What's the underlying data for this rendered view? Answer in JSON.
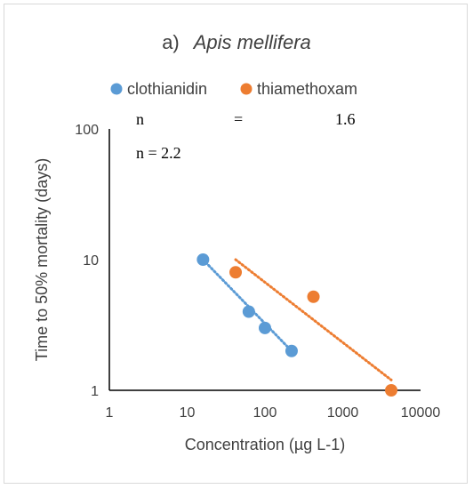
{
  "chart_data": {
    "type": "scatter",
    "title": {
      "prefix": "a)",
      "species": "Apis mellifera"
    },
    "xlabel": "Concentration (µg L-1)",
    "ylabel": "Time to 50% mortality (days)",
    "xscale": "log",
    "yscale": "log",
    "xlim": [
      1,
      10000
    ],
    "ylim": [
      1,
      100
    ],
    "xticks": [
      "1",
      "10",
      "100",
      "1000",
      "10000"
    ],
    "yticks": [
      "1",
      "10",
      "100"
    ],
    "legend_position": "top",
    "grid": false,
    "series": [
      {
        "name": "clothianidin",
        "color": "#5b9bd5",
        "points": [
          {
            "x": 16,
            "y": 10
          },
          {
            "x": 62,
            "y": 4
          },
          {
            "x": 100,
            "y": 3
          },
          {
            "x": 220,
            "y": 2
          }
        ],
        "trendline": {
          "x": [
            16,
            220
          ],
          "y": [
            10,
            2
          ]
        }
      },
      {
        "name": "thiamethoxam",
        "color": "#ed7d31",
        "points": [
          {
            "x": 42,
            "y": 8
          },
          {
            "x": 420,
            "y": 5.2
          },
          {
            "x": 4200,
            "y": 1
          }
        ],
        "trendline": {
          "x": [
            42,
            4200
          ],
          "y": [
            10,
            1.2
          ]
        }
      }
    ],
    "annotations": {
      "n_label_1": "n",
      "n_equals_1": "=",
      "n_value_1": "1.6",
      "n_label_2": "n = 2.2"
    }
  }
}
